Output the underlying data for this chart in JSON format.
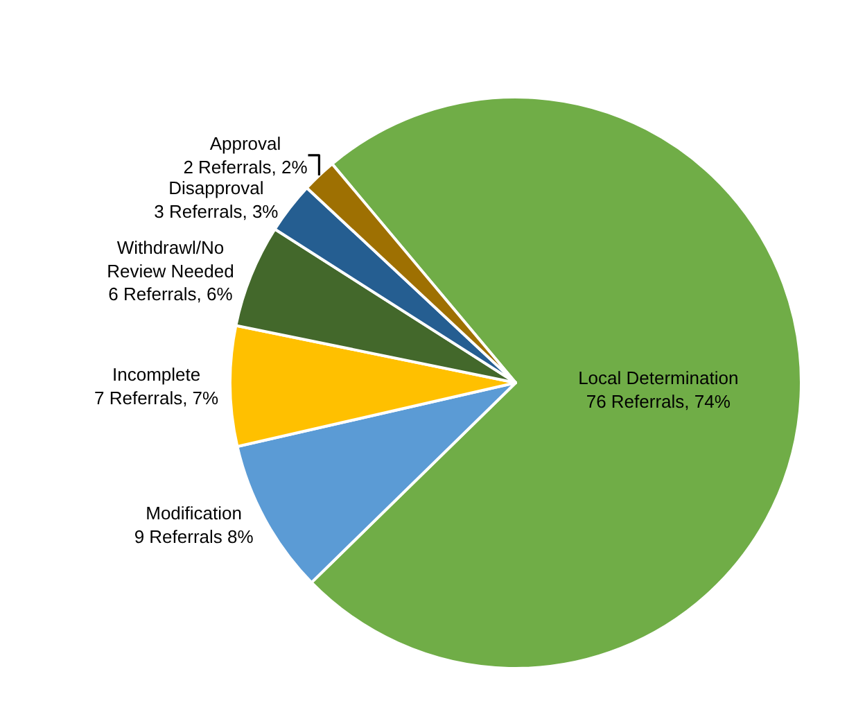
{
  "chart_data": {
    "type": "pie",
    "categories": [
      "Local Determination",
      "Modification",
      "Incomplete",
      "Withdrawl/No Review Needed",
      "Disapproval",
      "Approval"
    ],
    "values": [
      76,
      9,
      7,
      6,
      3,
      2
    ],
    "colors": [
      "#70ad47",
      "#5b9bd5",
      "#ffc000",
      "#43682b",
      "#255e91",
      "#9e7002"
    ],
    "value_labels": [
      "76 Referrals, 74%",
      "9 Referrals 8%",
      "7 Referrals, 7%",
      "6 Referrals, 6%",
      "3 Referrals, 3%",
      "2 Referrals, 2%"
    ],
    "legend": false
  }
}
